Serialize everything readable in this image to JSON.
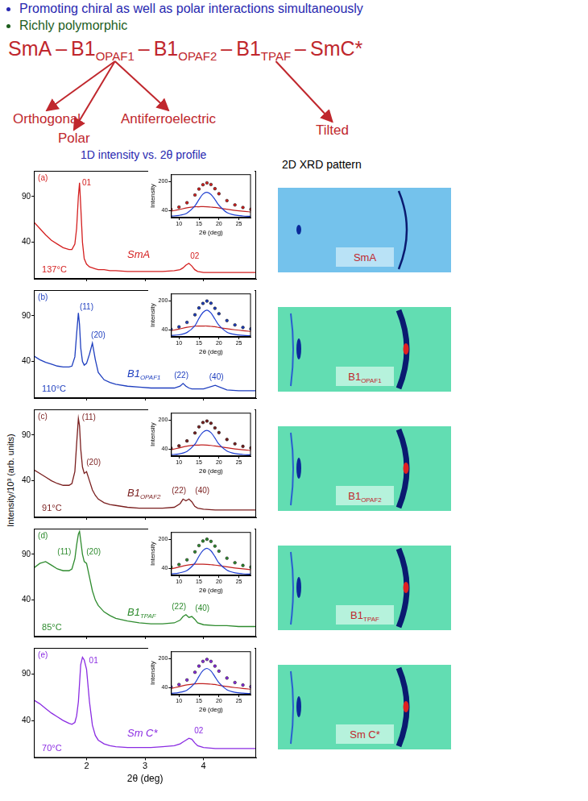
{
  "header": {
    "bullets": [
      "Promoting chiral as well as polar interactions simultaneously",
      "Richly polymorphic"
    ]
  },
  "separator": "–",
  "phase_sequence": [
    {
      "main": "SmA"
    },
    {
      "main": "B1",
      "sub": "OPAF1",
      "notes": [
        "Orthogonal",
        "Polar",
        "Antiferroelectric"
      ]
    },
    {
      "main": "B1",
      "sub": "OPAF2"
    },
    {
      "main": "B1",
      "sub": "TPAF",
      "notes": [
        "Tilted"
      ]
    },
    {
      "main": "SmC*"
    }
  ],
  "profiles_title": "1D intensity vs. 2θ profile",
  "y_axis_label": "Intensity/10³ (arb. units)",
  "patterns": {
    "title": "2D XRD pattern",
    "labels": [
      {
        "main": "SmA"
      },
      {
        "main": "B1",
        "sub": "OPAF1"
      },
      {
        "main": "B1",
        "sub": "OPAF2"
      },
      {
        "main": "B1",
        "sub": "TPAF"
      },
      {
        "main": "Sm C*"
      }
    ]
  },
  "chart_data": [
    {
      "type": "line",
      "panel": "(a)",
      "phase": {
        "main": "SmA"
      },
      "temperature": "137°C",
      "color": "#d42020",
      "grid": false,
      "tick_labels": "y",
      "xlim": [
        1.1,
        4.9
      ],
      "xticks": [
        2,
        3,
        4
      ],
      "ylim": [
        0,
        118
      ],
      "yticks": [
        40,
        90
      ],
      "x": [
        1.1,
        1.2,
        1.3,
        1.4,
        1.5,
        1.6,
        1.7,
        1.75,
        1.8,
        1.83,
        1.86,
        1.88,
        1.9,
        1.93,
        1.96,
        2.0,
        2.05,
        2.1,
        2.15,
        2.2,
        2.3,
        2.4,
        2.5,
        2.7,
        2.9,
        3.1,
        3.3,
        3.5,
        3.6,
        3.65,
        3.7,
        3.75,
        3.8,
        3.85,
        3.9,
        4.0,
        4.2,
        4.4,
        4.6,
        4.8,
        4.9
      ],
      "values": [
        62,
        55,
        48,
        42,
        38,
        34,
        32,
        32,
        38,
        55,
        90,
        105,
        80,
        40,
        22,
        16,
        13,
        12,
        11,
        10,
        10,
        9,
        9,
        8,
        8,
        8,
        8,
        9,
        10,
        12,
        15,
        17,
        14,
        10,
        8,
        7,
        7,
        7,
        7,
        7,
        7
      ],
      "peak_labels": [
        {
          "text": "01",
          "x": 2.0,
          "y": 100
        },
        {
          "text": "02",
          "x": 3.85,
          "y": 20
        }
      ],
      "inset": {
        "type": "line",
        "xlabel": "2θ (deg)",
        "ylabel": "Intensity",
        "xlim": [
          8,
          28
        ],
        "xticks": [
          10,
          15,
          20,
          25
        ],
        "ylim": [
          0,
          240
        ],
        "yticks": [
          40,
          200
        ],
        "x": [
          8,
          10,
          12,
          14,
          15,
          16,
          17,
          18,
          19,
          20,
          22,
          24,
          26,
          28
        ],
        "series": [
          {
            "color": "#d42020",
            "marker": "circle",
            "line_style": "none",
            "values": [
              45,
              58,
              82,
              125,
              158,
              182,
              192,
              183,
              160,
              132,
              94,
              70,
              56,
              46
            ]
          },
          {
            "color": "#1f3fd0",
            "line_style": "solid",
            "values": [
              8,
              12,
              25,
              65,
              100,
              130,
              140,
              128,
              100,
              68,
              28,
              14,
              9,
              7
            ]
          },
          {
            "color": "#c02020",
            "line_style": "solid",
            "values": [
              35,
              44,
              54,
              60,
              60,
              61,
              60,
              58,
              56,
              53,
              46,
              40,
              35,
              31
            ]
          }
        ]
      }
    },
    {
      "type": "line",
      "panel": "(b)",
      "phase": {
        "main": "B1",
        "sub": "OPAF1"
      },
      "temperature": "110°C",
      "color": "#1f3fbf",
      "grid": false,
      "tick_labels": "y",
      "xlim": [
        1.1,
        4.9
      ],
      "xticks": [
        2,
        3,
        4
      ],
      "ylim": [
        0,
        118
      ],
      "yticks": [
        40,
        90
      ],
      "x": [
        1.1,
        1.2,
        1.3,
        1.4,
        1.5,
        1.6,
        1.7,
        1.75,
        1.8,
        1.83,
        1.86,
        1.88,
        1.9,
        1.93,
        1.96,
        2.0,
        2.05,
        2.1,
        2.15,
        2.2,
        2.3,
        2.4,
        2.5,
        2.7,
        2.9,
        3.1,
        3.3,
        3.5,
        3.6,
        3.65,
        3.7,
        3.75,
        3.8,
        3.85,
        3.9,
        4.0,
        4.2,
        4.4,
        4.6,
        4.8,
        4.9
      ],
      "values": [
        46,
        42,
        39,
        37,
        35,
        34,
        34,
        35,
        45,
        70,
        93,
        80,
        55,
        40,
        36,
        38,
        48,
        60,
        42,
        28,
        20,
        17,
        15,
        13,
        12,
        11,
        11,
        11,
        13,
        16,
        13,
        11,
        10,
        10,
        10,
        10,
        14,
        9,
        8,
        8,
        8
      ],
      "peak_labels": [
        {
          "text": "(11)",
          "x": 2.0,
          "y": 95
        },
        {
          "text": "(20)",
          "x": 2.2,
          "y": 64
        },
        {
          "text": "(22)",
          "x": 3.62,
          "y": 20
        },
        {
          "text": "(40)",
          "x": 4.22,
          "y": 18
        }
      ],
      "inset": {
        "type": "line",
        "xlabel": "2θ (deg)",
        "ylabel": "Intensity",
        "xlim": [
          8,
          28
        ],
        "xticks": [
          10,
          15,
          20,
          25
        ],
        "ylim": [
          0,
          240
        ],
        "yticks": [
          40,
          200
        ],
        "x": [
          8,
          10,
          12,
          14,
          15,
          16,
          17,
          18,
          19,
          20,
          22,
          24,
          26,
          28
        ],
        "series": [
          {
            "color": "#1f3fbf",
            "marker": "circle",
            "line_style": "none",
            "values": [
              42,
              55,
              80,
              122,
              160,
              185,
              198,
              186,
              158,
              128,
              90,
              66,
              52,
              44
            ]
          },
          {
            "color": "#1f3fd0",
            "line_style": "solid",
            "values": [
              7,
              11,
              24,
              62,
              102,
              135,
              148,
              132,
              98,
              64,
              26,
              13,
              8,
              6
            ]
          },
          {
            "color": "#c02020",
            "line_style": "solid",
            "values": [
              34,
              43,
              53,
              59,
              60,
              60,
              60,
              58,
              56,
              52,
              45,
              39,
              34,
              30
            ]
          }
        ]
      }
    },
    {
      "type": "line",
      "panel": "(c)",
      "phase": {
        "main": "B1",
        "sub": "OPAF2"
      },
      "temperature": "91°C",
      "color": "#7a1f1f",
      "grid": false,
      "tick_labels": "y",
      "xlim": [
        1.1,
        4.9
      ],
      "xticks": [
        2,
        3,
        4
      ],
      "ylim": [
        0,
        118
      ],
      "yticks": [
        40,
        90
      ],
      "x": [
        1.1,
        1.2,
        1.3,
        1.4,
        1.5,
        1.6,
        1.7,
        1.75,
        1.8,
        1.83,
        1.86,
        1.88,
        1.9,
        1.93,
        1.96,
        2.0,
        2.05,
        2.1,
        2.15,
        2.2,
        2.3,
        2.4,
        2.5,
        2.7,
        2.9,
        3.1,
        3.3,
        3.5,
        3.6,
        3.65,
        3.7,
        3.75,
        3.8,
        3.85,
        3.9,
        4.0,
        4.2,
        4.4,
        4.6,
        4.8,
        4.9
      ],
      "values": [
        52,
        48,
        44,
        40,
        37,
        35,
        35,
        37,
        50,
        80,
        108,
        100,
        75,
        55,
        48,
        50,
        40,
        30,
        24,
        20,
        16,
        14,
        13,
        11,
        10,
        10,
        10,
        11,
        15,
        20,
        18,
        20,
        17,
        12,
        10,
        9,
        8,
        8,
        8,
        8,
        8
      ],
      "peak_labels": [
        {
          "text": "(11)",
          "x": 2.04,
          "y": 105
        },
        {
          "text": "(20)",
          "x": 2.12,
          "y": 55
        },
        {
          "text": "(22)",
          "x": 3.58,
          "y": 24
        },
        {
          "text": "(40)",
          "x": 3.98,
          "y": 24
        }
      ],
      "inset": {
        "type": "line",
        "xlabel": "2θ (deg)",
        "ylabel": "Intensity",
        "xlim": [
          8,
          28
        ],
        "xticks": [
          10,
          15,
          20,
          25
        ],
        "ylim": [
          0,
          240
        ],
        "yticks": [
          40,
          200
        ],
        "x": [
          8,
          10,
          12,
          14,
          15,
          16,
          17,
          18,
          19,
          20,
          22,
          24,
          26,
          28
        ],
        "series": [
          {
            "color": "#7a1f1f",
            "marker": "circle",
            "line_style": "none",
            "values": [
              44,
              57,
              84,
              128,
              162,
              186,
              194,
              182,
              156,
              130,
              92,
              68,
              54,
              45
            ]
          },
          {
            "color": "#1f3fd0",
            "line_style": "solid",
            "values": [
              8,
              12,
              26,
              66,
              104,
              132,
              142,
              130,
              100,
              66,
              28,
              14,
              9,
              7
            ]
          },
          {
            "color": "#c02020",
            "line_style": "solid",
            "values": [
              35,
              45,
              55,
              61,
              61,
              62,
              61,
              59,
              56,
              53,
              46,
              40,
              35,
              31
            ]
          }
        ]
      }
    },
    {
      "type": "line",
      "panel": "(d)",
      "phase": {
        "main": "B1",
        "sub": "TPAF"
      },
      "temperature": "85°C",
      "color": "#2e8b2e",
      "grid": false,
      "tick_labels": "y",
      "xlim": [
        1.1,
        4.9
      ],
      "xticks": [
        2,
        3,
        4
      ],
      "ylim": [
        0,
        118
      ],
      "yticks": [
        40,
        90
      ],
      "x": [
        1.1,
        1.2,
        1.3,
        1.4,
        1.5,
        1.6,
        1.7,
        1.75,
        1.8,
        1.83,
        1.86,
        1.88,
        1.9,
        1.93,
        1.96,
        2.0,
        2.05,
        2.1,
        2.15,
        2.2,
        2.3,
        2.4,
        2.5,
        2.7,
        2.9,
        3.1,
        3.3,
        3.5,
        3.6,
        3.65,
        3.7,
        3.75,
        3.8,
        3.85,
        3.9,
        4.0,
        4.2,
        4.4,
        4.6,
        4.8,
        4.9
      ],
      "values": [
        75,
        80,
        82,
        78,
        74,
        72,
        72,
        74,
        85,
        100,
        112,
        115,
        105,
        90,
        82,
        80,
        65,
        50,
        40,
        34,
        27,
        23,
        20,
        17,
        15,
        14,
        14,
        15,
        18,
        22,
        24,
        21,
        22,
        19,
        15,
        13,
        12,
        12,
        11,
        11,
        11
      ],
      "peak_labels": [
        {
          "text": "(11)",
          "x": 1.62,
          "y": 88
        },
        {
          "text": "(20)",
          "x": 2.12,
          "y": 88
        },
        {
          "text": "(22)",
          "x": 3.58,
          "y": 28
        },
        {
          "text": "(40)",
          "x": 3.98,
          "y": 26
        }
      ],
      "inset": {
        "type": "line",
        "xlabel": "2θ (deg)",
        "ylabel": "Intensity",
        "xlim": [
          8,
          28
        ],
        "xticks": [
          10,
          15,
          20,
          25
        ],
        "ylim": [
          0,
          240
        ],
        "yticks": [
          40,
          200
        ],
        "x": [
          8,
          10,
          12,
          14,
          15,
          16,
          17,
          18,
          19,
          20,
          22,
          24,
          26,
          28
        ],
        "series": [
          {
            "color": "#2e8b2e",
            "marker": "circle",
            "line_style": "none",
            "values": [
              46,
              60,
              86,
              130,
              165,
              190,
              200,
              188,
              162,
              134,
              95,
              70,
              55,
              46
            ]
          },
          {
            "color": "#1f3fd0",
            "line_style": "solid",
            "values": [
              8,
              13,
              27,
              68,
              106,
              138,
              150,
              136,
              104,
              68,
              29,
              14,
              9,
              7
            ]
          },
          {
            "color": "#c02020",
            "line_style": "solid",
            "values": [
              36,
              46,
              56,
              62,
              62,
              62,
              61,
              59,
              57,
              54,
              47,
              41,
              36,
              32
            ]
          }
        ]
      }
    },
    {
      "type": "line",
      "panel": "(e)",
      "phase": {
        "main": "Sm C*"
      },
      "temperature": "70°C",
      "color": "#8a2be2",
      "grid": false,
      "xlabel": "2θ (deg)",
      "xlim": [
        1.1,
        4.9
      ],
      "xticks": [
        2,
        3,
        4
      ],
      "ylim": [
        0,
        118
      ],
      "yticks": [
        40,
        90
      ],
      "x": [
        1.1,
        1.2,
        1.3,
        1.4,
        1.5,
        1.6,
        1.7,
        1.75,
        1.8,
        1.83,
        1.86,
        1.88,
        1.9,
        1.93,
        1.96,
        2.0,
        2.05,
        2.1,
        2.15,
        2.2,
        2.3,
        2.4,
        2.5,
        2.7,
        2.9,
        3.1,
        3.3,
        3.5,
        3.6,
        3.65,
        3.7,
        3.75,
        3.8,
        3.85,
        3.9,
        4.0,
        4.2,
        4.4,
        4.6,
        4.8,
        4.9
      ],
      "values": [
        62,
        58,
        53,
        48,
        44,
        40,
        37,
        36,
        38,
        45,
        60,
        80,
        100,
        108,
        105,
        95,
        60,
        35,
        24,
        19,
        15,
        13,
        12,
        11,
        11,
        11,
        12,
        13,
        15,
        17,
        19,
        21,
        20,
        16,
        13,
        11,
        10,
        10,
        10,
        10,
        10
      ],
      "peak_labels": [
        {
          "text": "01",
          "x": 2.12,
          "y": 100
        },
        {
          "text": "02",
          "x": 3.92,
          "y": 24
        }
      ],
      "inset": {
        "type": "line",
        "xlabel": "2θ (deg)",
        "ylabel": "Intensity",
        "xlim": [
          8,
          28
        ],
        "xticks": [
          10,
          15,
          20,
          25
        ],
        "ylim": [
          0,
          240
        ],
        "yticks": [
          40,
          200
        ],
        "x": [
          8,
          10,
          12,
          14,
          15,
          16,
          17,
          18,
          19,
          20,
          22,
          24,
          26,
          28
        ],
        "series": [
          {
            "color": "#8a2be2",
            "marker": "circle",
            "line_style": "none",
            "values": [
              43,
              56,
              81,
              124,
              158,
              184,
              195,
              184,
              158,
              130,
              92,
              67,
              53,
              44
            ]
          },
          {
            "color": "#1f3fd0",
            "line_style": "solid",
            "values": [
              7,
              12,
              25,
              64,
              101,
              133,
              145,
              131,
              99,
              66,
              27,
              13,
              8,
              6
            ]
          },
          {
            "color": "#c02020",
            "line_style": "solid",
            "values": [
              34,
              44,
              54,
              60,
              61,
              61,
              60,
              58,
              56,
              52,
              45,
              39,
              34,
              30
            ]
          }
        ]
      }
    }
  ]
}
